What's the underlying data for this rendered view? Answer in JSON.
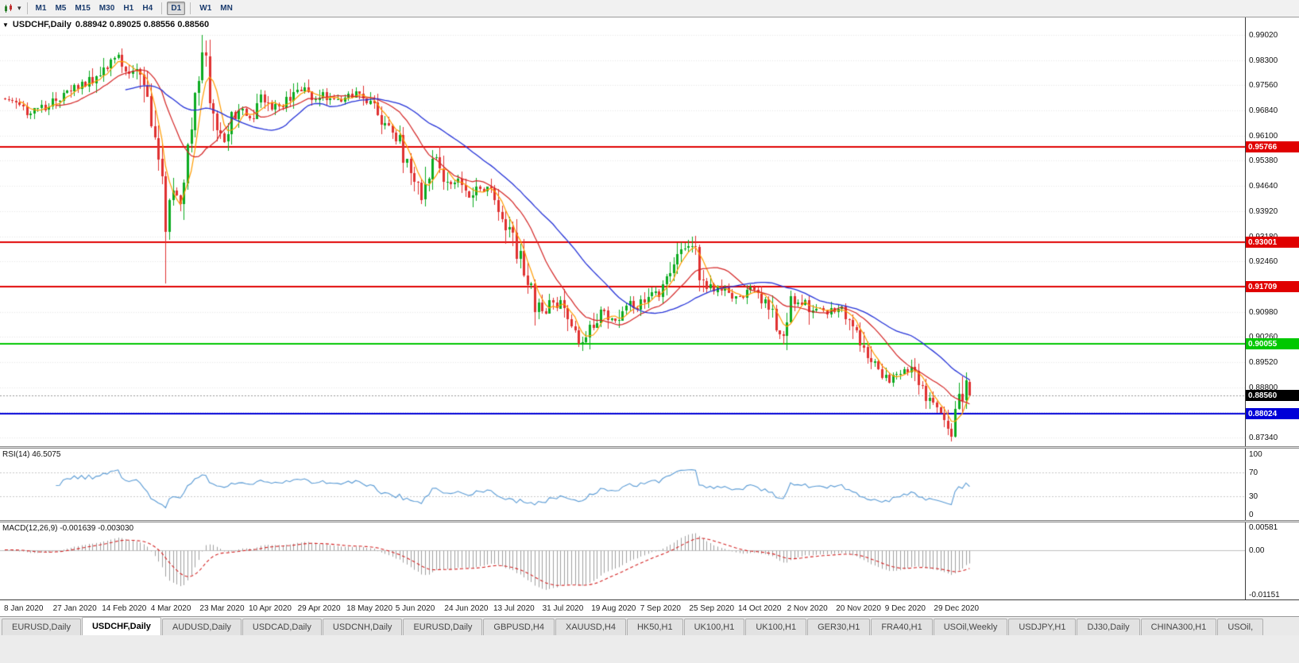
{
  "toolbar": {
    "timeframe_groups": [
      {
        "items": [
          {
            "label": "M1"
          },
          {
            "label": "M5"
          },
          {
            "label": "M15"
          },
          {
            "label": "M30"
          },
          {
            "label": "H1"
          },
          {
            "label": "H4"
          }
        ]
      },
      {
        "items": [
          {
            "label": "D1",
            "active": true
          }
        ]
      },
      {
        "items": [
          {
            "label": "W1"
          },
          {
            "label": "MN"
          }
        ]
      }
    ]
  },
  "chart": {
    "symbol": "USDCHF",
    "period": "Daily",
    "title_symbol": "USDCHF,Daily",
    "title_ohlc": "0.88942 0.89025 0.88556 0.88560",
    "ohlc": {
      "open": "0.88942",
      "high": "0.89025",
      "low": "0.88556",
      "close": "0.88560"
    },
    "last_candle": {
      "o": 0.88942,
      "h": 0.89025,
      "l": 0.88556,
      "c": 0.8856
    },
    "price_axis": {
      "max": 0.9902,
      "min": 0.8734,
      "labels": [
        "0.99020",
        "0.98300",
        "0.97560",
        "0.96840",
        "0.96100",
        "0.95380",
        "0.94640",
        "0.93920",
        "0.93180",
        "0.92460",
        "0.91720",
        "0.90980",
        "0.90260",
        "0.89520",
        "0.88800",
        "0.88060",
        "0.87340"
      ]
    },
    "hlines": [
      {
        "value": 0.95766,
        "label": "0.95766",
        "color": "#e00000"
      },
      {
        "value": 0.93001,
        "label": "0.93001",
        "color": "#e00000"
      },
      {
        "value": 0.91709,
        "label": "0.91709",
        "color": "#e00000"
      },
      {
        "value": 0.90055,
        "label": "0.90055",
        "color": "#00c800"
      },
      {
        "value": 0.88024,
        "label": "0.88024",
        "color": "#0000d8"
      }
    ],
    "current_price_badge": {
      "value": 0.8856,
      "label": "0.88560",
      "bg": "#000000"
    },
    "candle_count": 265,
    "approx_close_anchors": [
      [
        0,
        0.9718
      ],
      [
        3,
        0.9701
      ],
      [
        6,
        0.9674
      ],
      [
        9,
        0.9688
      ],
      [
        12,
        0.9694
      ],
      [
        15,
        0.9722
      ],
      [
        18,
        0.9748
      ],
      [
        21,
        0.976
      ],
      [
        24,
        0.9772
      ],
      [
        27,
        0.9812
      ],
      [
        30,
        0.9838
      ],
      [
        32,
        0.982
      ],
      [
        34,
        0.98
      ],
      [
        36,
        0.9792
      ],
      [
        38,
        0.9745
      ],
      [
        40,
        0.9645
      ],
      [
        42,
        0.956
      ],
      [
        43,
        0.947
      ],
      [
        44,
        0.934
      ],
      [
        45,
        0.94
      ],
      [
        46,
        0.9455
      ],
      [
        48,
        0.9425
      ],
      [
        50,
        0.956
      ],
      [
        52,
        0.971
      ],
      [
        54,
        0.9865
      ],
      [
        55,
        0.981
      ],
      [
        56,
        0.9705
      ],
      [
        58,
        0.9645
      ],
      [
        60,
        0.9585
      ],
      [
        62,
        0.9655
      ],
      [
        65,
        0.9685
      ],
      [
        67,
        0.966
      ],
      [
        70,
        0.9722
      ],
      [
        73,
        0.9685
      ],
      [
        76,
        0.9702
      ],
      [
        79,
        0.9728
      ],
      [
        81,
        0.9748
      ],
      [
        84,
        0.9705
      ],
      [
        87,
        0.9728
      ],
      [
        90,
        0.9712
      ],
      [
        94,
        0.9718
      ],
      [
        97,
        0.9738
      ],
      [
        100,
        0.9705
      ],
      [
        103,
        0.9645
      ],
      [
        106,
        0.9618
      ],
      [
        108,
        0.96
      ],
      [
        110,
        0.9525
      ],
      [
        112,
        0.9482
      ],
      [
        114,
        0.9435
      ],
      [
        116,
        0.9512
      ],
      [
        118,
        0.9552
      ],
      [
        121,
        0.9482
      ],
      [
        124,
        0.9472
      ],
      [
        127,
        0.9425
      ],
      [
        130,
        0.9462
      ],
      [
        133,
        0.9442
      ],
      [
        135,
        0.9402
      ],
      [
        137,
        0.9355
      ],
      [
        139,
        0.9305
      ],
      [
        141,
        0.9255
      ],
      [
        143,
        0.9185
      ],
      [
        145,
        0.9125
      ],
      [
        148,
        0.9082
      ],
      [
        150,
        0.9132
      ],
      [
        152,
        0.9112
      ],
      [
        154,
        0.9062
      ],
      [
        156,
        0.9035
      ],
      [
        158,
        0.9012
      ],
      [
        161,
        0.9072
      ],
      [
        163,
        0.9102
      ],
      [
        165,
        0.9082
      ],
      [
        167,
        0.9062
      ],
      [
        170,
        0.9122
      ],
      [
        173,
        0.9102
      ],
      [
        175,
        0.9132
      ],
      [
        177,
        0.9162
      ],
      [
        179,
        0.9142
      ],
      [
        182,
        0.9205
      ],
      [
        185,
        0.9272
      ],
      [
        188,
        0.9292
      ],
      [
        190,
        0.9222
      ],
      [
        192,
        0.9182
      ],
      [
        194,
        0.9152
      ],
      [
        197,
        0.9172
      ],
      [
        199,
        0.9132
      ],
      [
        202,
        0.9146
      ],
      [
        205,
        0.9162
      ],
      [
        208,
        0.9132
      ],
      [
        210,
        0.9082
      ],
      [
        212,
        0.9032
      ],
      [
        214,
        0.9062
      ],
      [
        215,
        0.9152
      ],
      [
        217,
        0.9122
      ],
      [
        219,
        0.9142
      ],
      [
        221,
        0.9102
      ],
      [
        224,
        0.9112
      ],
      [
        227,
        0.9092
      ],
      [
        229,
        0.9112
      ],
      [
        231,
        0.9082
      ],
      [
        233,
        0.9042
      ],
      [
        235,
        0.8992
      ],
      [
        237,
        0.8952
      ],
      [
        239,
        0.8922
      ],
      [
        242,
        0.8892
      ],
      [
        244,
        0.8912
      ],
      [
        246,
        0.8942
      ],
      [
        248,
        0.8922
      ],
      [
        250,
        0.8882
      ],
      [
        252,
        0.8852
      ],
      [
        254,
        0.8832
      ],
      [
        256,
        0.8822
      ],
      [
        258,
        0.8772
      ],
      [
        259,
        0.8748
      ],
      [
        260,
        0.8792
      ],
      [
        261,
        0.8832
      ],
      [
        262,
        0.8872
      ],
      [
        263,
        0.8894
      ],
      [
        264,
        0.8856
      ]
    ],
    "forced_extremes": [
      {
        "i": 44,
        "low": 0.918
      },
      {
        "i": 54,
        "high": 0.9901
      },
      {
        "i": 158,
        "low": 0.9
      },
      {
        "i": 188,
        "high": 0.9305
      },
      {
        "i": 213,
        "low": 0.9004
      },
      {
        "i": 259,
        "low": 0.8734
      }
    ],
    "colors": {
      "up": "#0bab20",
      "down": "#e03131",
      "ma_fast": "#ff9c00",
      "ma_mid": "#d42424",
      "ma_slow": "#2432d8",
      "grid": "#e7e7e7",
      "bid_line": "#9a9a9a"
    }
  },
  "rsi": {
    "label": "RSI(14) 46.5075",
    "value": "46.5075",
    "axis_labels": [
      "100",
      "70",
      "30",
      "0"
    ],
    "levels": [
      70,
      30
    ],
    "color": "#5a9bd5"
  },
  "macd": {
    "label": "MACD(12,26,9) -0.001639 -0.003030",
    "values": "-0.001639 -0.003030",
    "axis_labels": [
      "0.00581",
      "0.00",
      "-0.01151"
    ],
    "max": 0.00581,
    "min": -0.01151,
    "hist_color": "#a0a0a0",
    "signal_color": "#d42424"
  },
  "date_axis": {
    "labels": [
      "8 Jan 2020",
      "27 Jan 2020",
      "14 Feb 2020",
      "4 Mar 2020",
      "23 Mar 2020",
      "10 Apr 2020",
      "29 Apr 2020",
      "18 May 2020",
      "5 Jun 2020",
      "24 Jun 2020",
      "13 Jul 2020",
      "31 Jul 2020",
      "19 Aug 2020",
      "7 Sep 2020",
      "25 Sep 2020",
      "14 Oct 2020",
      "2 Nov 2020",
      "20 Nov 2020",
      "9 Dec 2020",
      "29 Dec 2020"
    ]
  },
  "tabs": [
    {
      "label": "EURUSD,Daily"
    },
    {
      "label": "USDCHF,Daily",
      "active": true
    },
    {
      "label": "AUDUSD,Daily"
    },
    {
      "label": "USDCAD,Daily"
    },
    {
      "label": "USDCNH,Daily"
    },
    {
      "label": "EURUSD,Daily"
    },
    {
      "label": "GBPUSD,H4"
    },
    {
      "label": "XAUUSD,H4"
    },
    {
      "label": "HK50,H1"
    },
    {
      "label": "UK100,H1"
    },
    {
      "label": "UK100,H1"
    },
    {
      "label": "GER30,H1"
    },
    {
      "label": "FRA40,H1"
    },
    {
      "label": "USOil,Weekly"
    },
    {
      "label": "USDJPY,H1"
    },
    {
      "label": "DJ30,Daily"
    },
    {
      "label": "CHINA300,H1"
    },
    {
      "label": "USOil,"
    }
  ]
}
